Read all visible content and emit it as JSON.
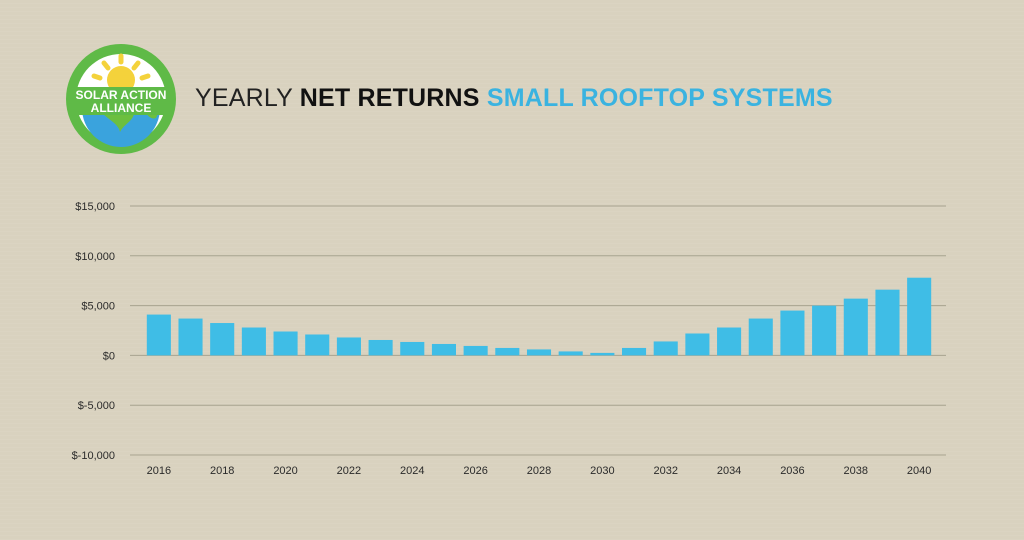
{
  "logo": {
    "line1": "SOLAR ACTION",
    "line2": "ALLIANCE",
    "colors": {
      "ring": "#5fba47",
      "sun": "#f4d23b",
      "globe": "#3aa3dd",
      "land": "#6cbf3f"
    }
  },
  "title": {
    "part1": "YEARLY ",
    "part2": "NET RETURNS",
    "part3": " SMALL ROOFTOP SYSTEMS"
  },
  "chart_data": {
    "type": "bar",
    "title": "YEARLY NET RETURNS SMALL ROOFTOP SYSTEMS",
    "xlabel": "",
    "ylabel": "",
    "categories": [
      "2016",
      "2017",
      "2018",
      "2019",
      "2020",
      "2021",
      "2022",
      "2023",
      "2024",
      "2025",
      "2026",
      "2027",
      "2028",
      "2029",
      "2030",
      "2031",
      "2032",
      "2033",
      "2034",
      "2035",
      "2036",
      "2037",
      "2038",
      "2039",
      "2040"
    ],
    "x_tick_labels": [
      "2016",
      "2018",
      "2020",
      "2022",
      "2024",
      "2026",
      "2028",
      "2030",
      "2032",
      "2034",
      "2036",
      "2038",
      "2040"
    ],
    "values": [
      4100,
      3700,
      3250,
      2800,
      2400,
      2100,
      1800,
      1550,
      1350,
      1150,
      950,
      750,
      600,
      400,
      250,
      750,
      1400,
      2200,
      2800,
      3700,
      4500,
      5000,
      5700,
      6600,
      7800
    ],
    "ylim": [
      -10000,
      15000
    ],
    "y_ticks": [
      15000,
      10000,
      5000,
      0,
      -5000,
      -10000
    ],
    "y_tick_labels": [
      "$15,000",
      "$10,000",
      "$5,000",
      "$0",
      "$-5,000",
      "$-10,000"
    ],
    "bar_color": "#3fbde6",
    "grid": true,
    "grid_color": "#a8a38f",
    "legend": "none"
  }
}
